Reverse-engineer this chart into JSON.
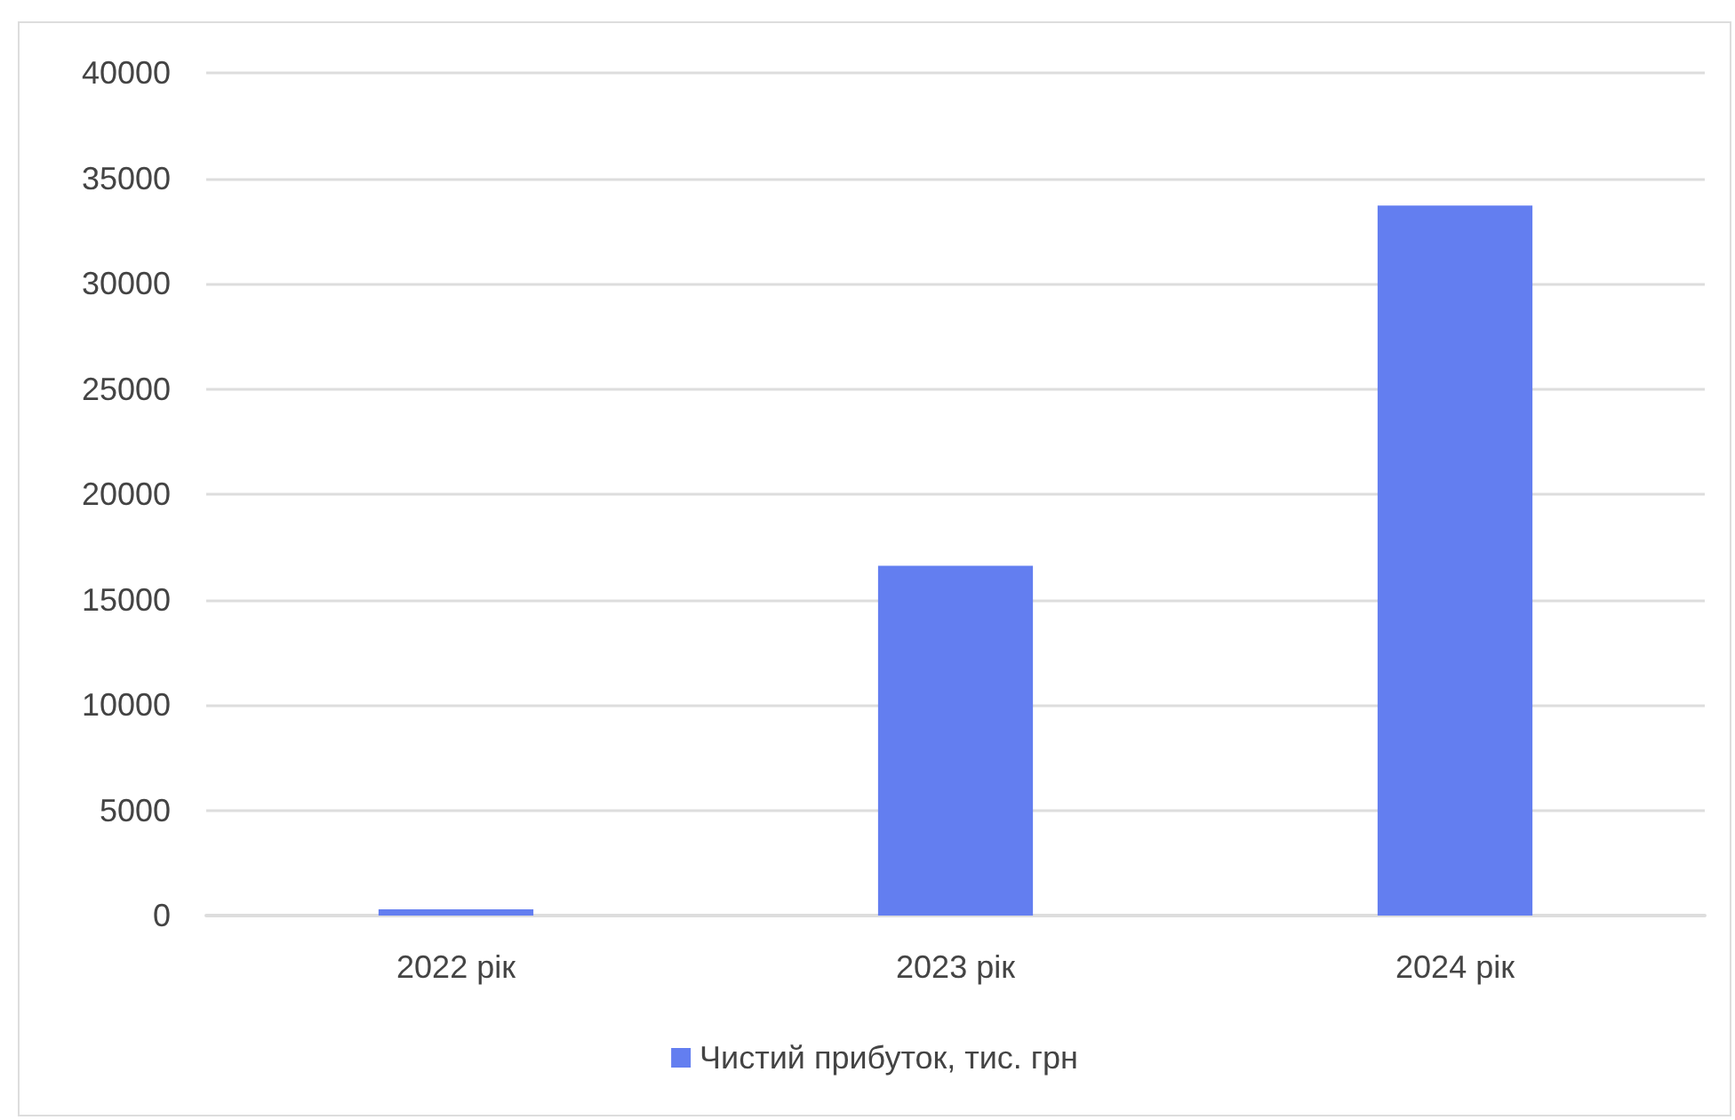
{
  "chart_data": {
    "type": "bar",
    "categories": [
      "2022 рік",
      "2023 рік",
      "2024 рік"
    ],
    "series": [
      {
        "name": "Чистий прибуток, тис. грн",
        "color": "#637ef0",
        "values": [
          300,
          16600,
          33700
        ]
      }
    ],
    "ylim": [
      0,
      40000
    ],
    "yticks": [
      0,
      5000,
      10000,
      15000,
      20000,
      25000,
      30000,
      35000,
      40000
    ],
    "grid": "y",
    "legend": "bottom"
  }
}
